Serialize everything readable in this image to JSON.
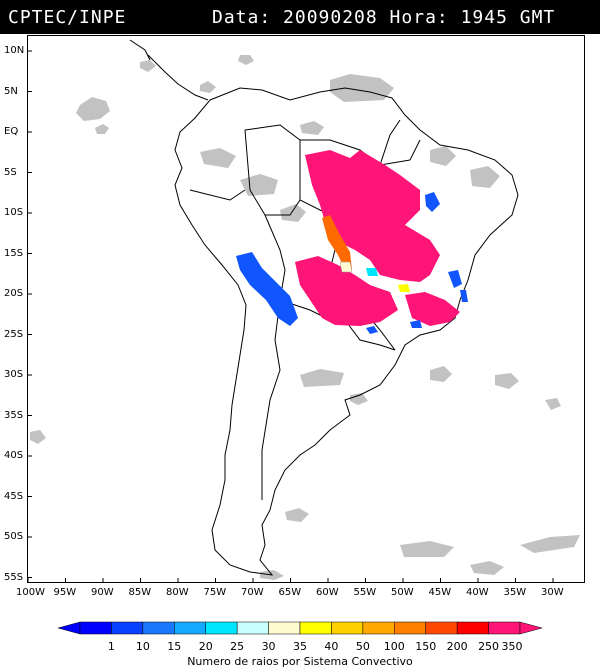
{
  "header": {
    "org": "CPTEC/INPE",
    "stamp": "Data: 20090208 Hora: 1945 GMT"
  },
  "lat_ticks": [
    "10N",
    "5N",
    "EQ",
    "5S",
    "10S",
    "15S",
    "20S",
    "25S",
    "30S",
    "35S",
    "40S",
    "45S",
    "50S",
    "55S"
  ],
  "lon_ticks": [
    "100W",
    "95W",
    "90W",
    "85W",
    "80W",
    "75W",
    "70W",
    "65W",
    "60W",
    "55W",
    "50W",
    "45W",
    "40W",
    "35W",
    "30W"
  ],
  "legend": {
    "labels": [
      "1",
      "10",
      "15",
      "20",
      "25",
      "30",
      "35",
      "40",
      "50",
      "100",
      "150",
      "200",
      "250",
      "350"
    ],
    "colors": [
      "#0000ff",
      "#0a40ff",
      "#1a78ff",
      "#14aaff",
      "#00e6ff",
      "#c8ffff",
      "#fffad0",
      "#ffff00",
      "#ffd000",
      "#ffa800",
      "#ff8000",
      "#ff4800",
      "#ff0000",
      "#ff1477"
    ],
    "caption": "Numero de raios por Sistema Convectivo"
  },
  "colors": {
    "cloud": "#c2c2c2",
    "coastline": "#000000",
    "storm_magenta": "#ff1477",
    "storm_orange": "#ff6a00",
    "storm_blue": "#1155ff"
  }
}
